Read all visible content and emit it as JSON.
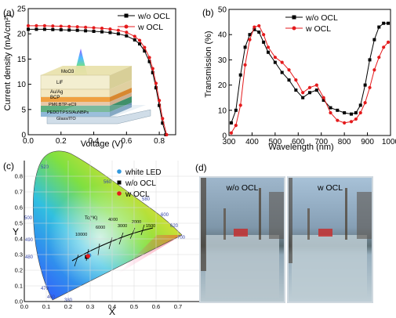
{
  "panels": {
    "a": {
      "label": "(a)"
    },
    "b": {
      "label": "(b)"
    },
    "c": {
      "label": "(c)"
    },
    "d": {
      "label": "(d)"
    }
  },
  "chart_data": [
    {
      "type": "line",
      "panel": "a",
      "xlabel": "Voltage (V)",
      "ylabel": "Current density (mA/cm²)",
      "xlim": [
        0,
        0.9
      ],
      "ylim": [
        0,
        25
      ],
      "xticks": [
        0.0,
        0.2,
        0.4,
        0.6,
        0.8
      ],
      "yticks": [
        0,
        5,
        10,
        15,
        20,
        25
      ],
      "legend": "top-right",
      "series": [
        {
          "name": "w/o OCL",
          "color": "#000000",
          "marker": "square",
          "x": [
            0,
            0.05,
            0.1,
            0.15,
            0.2,
            0.25,
            0.3,
            0.35,
            0.4,
            0.45,
            0.5,
            0.55,
            0.6,
            0.65,
            0.68,
            0.71,
            0.74,
            0.76,
            0.78,
            0.8,
            0.82,
            0.84
          ],
          "y": [
            20.9,
            20.9,
            20.9,
            20.85,
            20.8,
            20.75,
            20.7,
            20.6,
            20.5,
            20.4,
            20.25,
            20.0,
            19.6,
            18.8,
            18.0,
            16.6,
            14.5,
            12.3,
            9.3,
            5.8,
            2.3,
            0
          ]
        },
        {
          "name": "w OCL",
          "color": "#e41a1c",
          "marker": "circle",
          "x": [
            0,
            0.05,
            0.1,
            0.15,
            0.2,
            0.25,
            0.3,
            0.35,
            0.4,
            0.45,
            0.5,
            0.55,
            0.6,
            0.65,
            0.68,
            0.71,
            0.74,
            0.76,
            0.78,
            0.8,
            0.82,
            0.845
          ],
          "y": [
            21.6,
            21.6,
            21.6,
            21.55,
            21.5,
            21.45,
            21.4,
            21.3,
            21.2,
            21.1,
            20.95,
            20.7,
            20.3,
            19.5,
            18.7,
            17.3,
            15.3,
            13.1,
            10.2,
            6.8,
            3.2,
            0
          ]
        }
      ],
      "inset_layers": [
        "MoO3",
        "LiF",
        "Au/Ag",
        "BCP",
        "PM6:BTP-eC9",
        "PEDOT:PSS/AuNBPs",
        "Glass/ITO"
      ]
    },
    {
      "type": "line",
      "panel": "b",
      "xlabel": "Wavelength (nm)",
      "ylabel": "Transmission (%)",
      "xlim": [
        300,
        1000
      ],
      "ylim": [
        0,
        50
      ],
      "xticks": [
        300,
        400,
        500,
        600,
        700,
        800,
        900,
        1000
      ],
      "yticks": [
        0,
        10,
        20,
        30,
        40,
        50
      ],
      "legend": "top-right",
      "series": [
        {
          "name": "w/o OCL",
          "color": "#000000",
          "marker": "square",
          "x": [
            310,
            330,
            350,
            370,
            390,
            410,
            430,
            450,
            470,
            500,
            530,
            560,
            590,
            620,
            650,
            680,
            710,
            740,
            770,
            800,
            830,
            850,
            870,
            890,
            910,
            930,
            950,
            970,
            990
          ],
          "y": [
            5,
            10,
            24,
            35,
            40,
            42,
            41,
            37,
            33,
            29,
            25,
            22,
            18,
            15,
            17,
            18,
            14,
            11,
            10,
            9,
            8.5,
            9,
            12,
            20,
            30,
            38,
            43,
            44.5,
            44.5
          ]
        },
        {
          "name": "w OCL",
          "color": "#e41a1c",
          "marker": "circle",
          "x": [
            310,
            330,
            350,
            370,
            390,
            410,
            430,
            450,
            470,
            500,
            530,
            560,
            590,
            620,
            650,
            680,
            710,
            740,
            770,
            800,
            830,
            850,
            870,
            890,
            910,
            930,
            950,
            970,
            990
          ],
          "y": [
            1,
            4,
            12,
            28,
            38,
            43,
            43.5,
            40,
            35,
            31,
            29,
            26,
            22,
            17,
            19,
            20,
            15,
            9,
            6,
            5,
            5.5,
            6.5,
            9,
            13,
            19,
            26,
            31,
            35,
            37
          ]
        }
      ]
    },
    {
      "type": "scatter",
      "panel": "c",
      "xlabel": "X",
      "ylabel": "Y",
      "xlim": [
        0,
        0.8
      ],
      "ylim": [
        0,
        0.9
      ],
      "xticks": [
        0.0,
        0.1,
        0.2,
        0.3,
        0.4,
        0.5,
        0.6,
        0.7
      ],
      "yticks": [
        0.0,
        0.1,
        0.2,
        0.3,
        0.4,
        0.5,
        0.6,
        0.7,
        0.8
      ],
      "legend": "top-right",
      "series": [
        {
          "name": "white LED",
          "color": "#3399dd",
          "marker": "circle",
          "x": [
            0.295
          ],
          "y": [
            0.295
          ]
        },
        {
          "name": "w/o OCL",
          "color": "#000000",
          "marker": "square",
          "x": [
            0.285
          ],
          "y": [
            0.285
          ]
        },
        {
          "name": "w OCL",
          "color": "#e41a1c",
          "marker": "circle",
          "x": [
            0.29
          ],
          "y": [
            0.29
          ]
        }
      ],
      "wavelength_labels": [
        "380",
        "460",
        "470",
        "480",
        "490",
        "500",
        "520",
        "560",
        "580",
        "600",
        "620",
        "700"
      ],
      "cct_labels": [
        "10000",
        "6000",
        "4000",
        "3000",
        "2000",
        "1500"
      ],
      "cct_title": "Tc(°K)"
    }
  ],
  "photos": {
    "left_caption": "w/o OCL",
    "right_caption": "w OCL"
  }
}
